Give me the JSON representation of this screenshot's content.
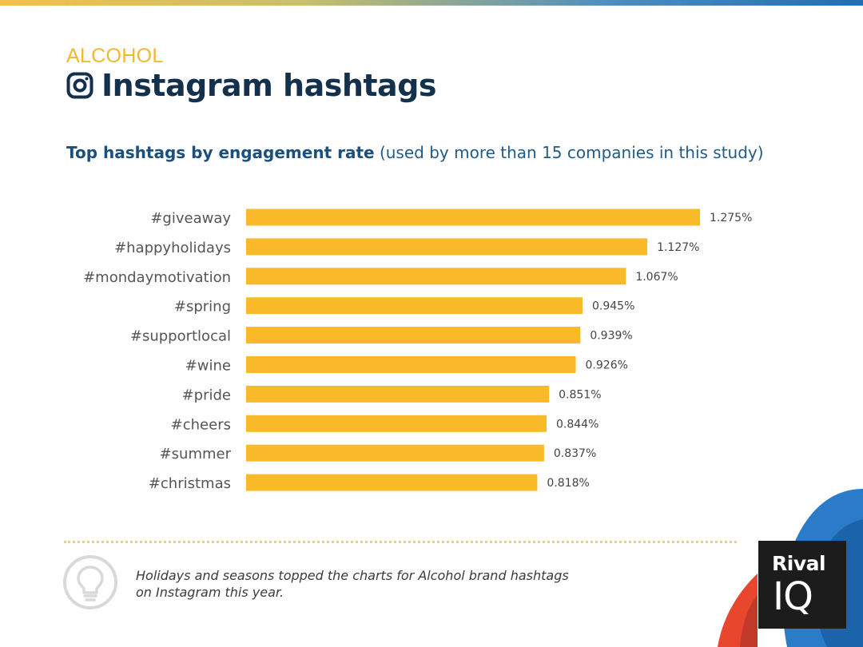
{
  "header": {
    "category": "ALCOHOL",
    "title": "Instagram hashtags",
    "icon": "instagram-icon"
  },
  "subtitle": {
    "bold": "Top hashtags by engagement rate",
    "rest": " (used by more than 15 companies in this study)"
  },
  "chart_data": {
    "type": "bar",
    "orientation": "horizontal",
    "categories": [
      "#giveaway",
      "#happyholidays",
      "#mondaymotivation",
      "#spring",
      "#supportlocal",
      "#wine",
      "#pride",
      "#cheers",
      "#summer",
      "#christmas"
    ],
    "values": [
      1.275,
      1.127,
      1.067,
      0.945,
      0.939,
      0.926,
      0.851,
      0.844,
      0.837,
      0.818
    ],
    "data_labels": [
      "1.275%",
      "1.127%",
      "1.067%",
      "0.945%",
      "0.939%",
      "0.926%",
      "0.851%",
      "0.844%",
      "0.837%",
      "0.818%"
    ],
    "unit": "%",
    "xlim": [
      0,
      1.275
    ],
    "grid": false,
    "bar_color": "#f9b929"
  },
  "footer": {
    "note": "Holidays and seasons topped the charts for Alcohol brand hashtags on Instagram this year.",
    "note_icon": "lightbulb-icon"
  },
  "logo": {
    "line1": "Rival",
    "line2": "IQ"
  },
  "colors": {
    "accent": "#f4b731",
    "title": "#13304d",
    "subtitle": "#1f5a8a"
  }
}
